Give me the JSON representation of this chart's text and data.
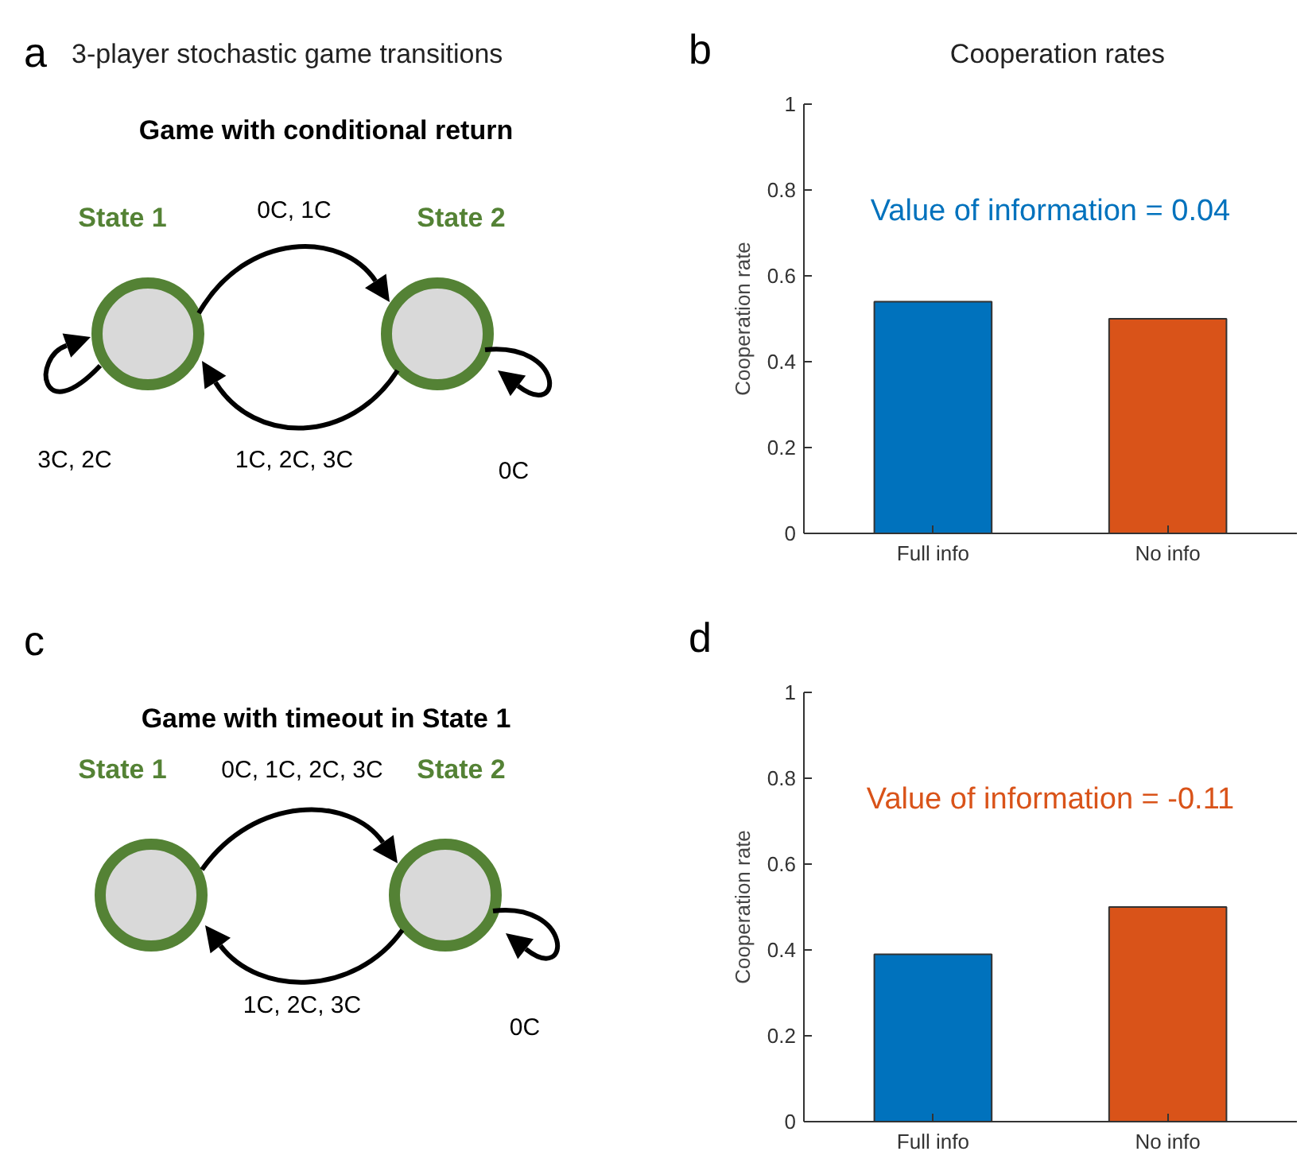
{
  "chart_data": [
    {
      "type": "other",
      "title": "3-player stochastic game transitions",
      "subtitle": "Game with conditional return",
      "annotations": [
        "a",
        "State 1",
        "State 2",
        "0C, 1C",
        "1C, 2C, 3C",
        "3C, 2C",
        "0C"
      ]
    },
    {
      "type": "bar",
      "title": "Cooperation rates",
      "ylabel": "Cooperation rate",
      "categories": [
        "Full info",
        "No info"
      ],
      "values": [
        0.54,
        0.5
      ],
      "colors": [
        "#0072bd",
        "#d95319"
      ],
      "ylim": [
        0,
        1
      ],
      "yticks": [
        0,
        0.2,
        0.4,
        0.6,
        0.8,
        1
      ],
      "grid": false,
      "annotations": [
        "b",
        "Value of information = 0.04"
      ]
    },
    {
      "type": "other",
      "subtitle": "Game with timeout in State 1",
      "annotations": [
        "c",
        "State 1",
        "State 2",
        "0C, 1C, 2C, 3C",
        "1C, 2C, 3C",
        "0C"
      ]
    },
    {
      "type": "bar",
      "ylabel": "Cooperation rate",
      "categories": [
        "Full info",
        "No info"
      ],
      "values": [
        0.39,
        0.5
      ],
      "colors": [
        "#0072bd",
        "#d95319"
      ],
      "ylim": [
        0,
        1
      ],
      "yticks": [
        0,
        0.2,
        0.4,
        0.6,
        0.8,
        1
      ],
      "grid": false,
      "annotations": [
        "d",
        "Value of information = -0.11"
      ]
    }
  ]
}
